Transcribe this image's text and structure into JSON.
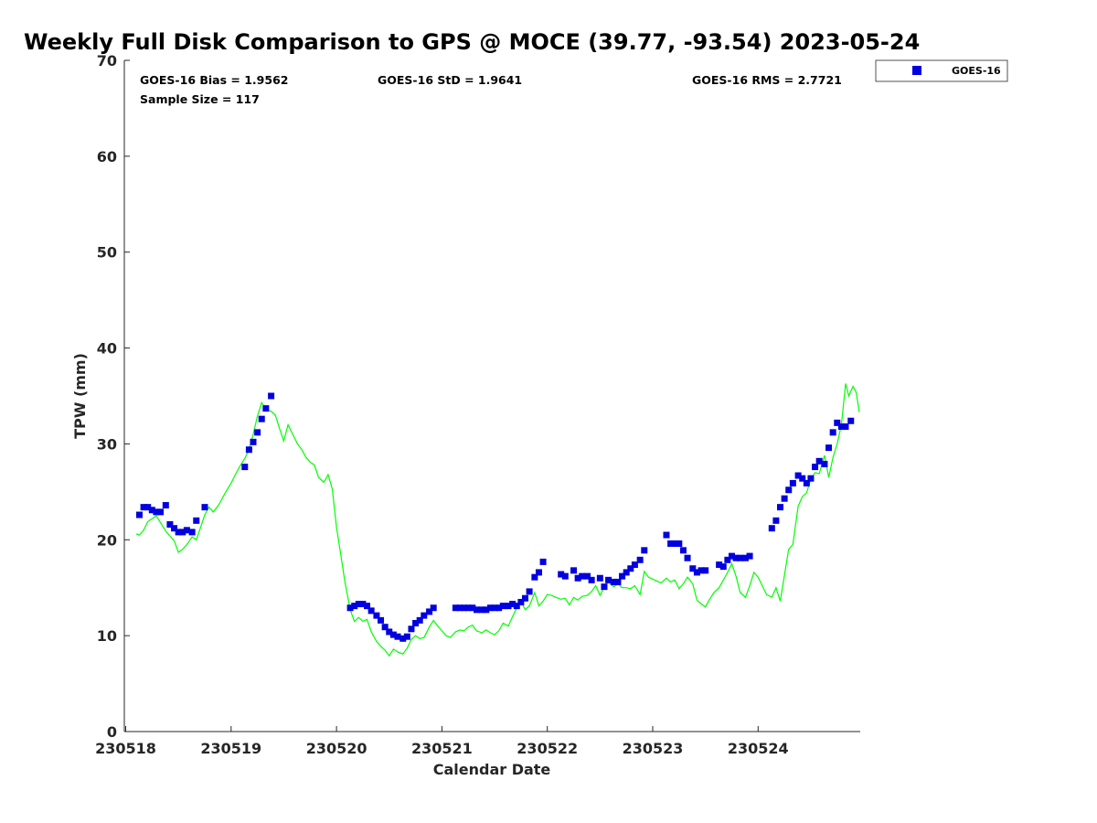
{
  "chart_data": {
    "type": "scatter",
    "title": "Weekly Full Disk Comparison to GPS @ MOCE (39.77, -93.54) 2023-05-24",
    "xlabel": "Calendar Date",
    "ylabel": "TPW (mm)",
    "xlim": [
      230518,
      230525
    ],
    "ylim": [
      0,
      70
    ],
    "x_ticks": [
      230518,
      230519,
      230520,
      230521,
      230522,
      230523,
      230524
    ],
    "x_tick_labels": [
      "230518",
      "230519",
      "230520",
      "230521",
      "230522",
      "230523",
      "230524"
    ],
    "y_ticks": [
      0,
      10,
      20,
      30,
      40,
      50,
      60,
      70
    ],
    "grid": false,
    "legend_position": "outside top-right",
    "stats": {
      "bias": "GOES-16 Bias = 1.9562",
      "std": "GOES-16 StD = 1.9641",
      "rms": "GOES-16 RMS = 2.7721",
      "sample_size": "Sample Size = 117"
    },
    "series": [
      {
        "name": "GOES-16",
        "marker": "square",
        "color": "#0000e0",
        "points": [
          [
            230518.13,
            22.6
          ],
          [
            230518.17,
            23.4
          ],
          [
            230518.21,
            23.4
          ],
          [
            230518.25,
            23.1
          ],
          [
            230518.29,
            22.9
          ],
          [
            230518.33,
            22.9
          ],
          [
            230518.38,
            23.6
          ],
          [
            230518.42,
            21.6
          ],
          [
            230518.46,
            21.2
          ],
          [
            230518.5,
            20.8
          ],
          [
            230518.54,
            20.8
          ],
          [
            230518.58,
            21.0
          ],
          [
            230518.63,
            20.8
          ],
          [
            230518.67,
            22.0
          ],
          [
            230518.75,
            23.4
          ],
          [
            230519.13,
            27.6
          ],
          [
            230519.17,
            29.4
          ],
          [
            230519.21,
            30.2
          ],
          [
            230519.25,
            31.2
          ],
          [
            230519.29,
            32.6
          ],
          [
            230519.33,
            33.7
          ],
          [
            230519.38,
            35.0
          ],
          [
            230520.13,
            12.9
          ],
          [
            230520.17,
            13.1
          ],
          [
            230520.21,
            13.3
          ],
          [
            230520.25,
            13.3
          ],
          [
            230520.29,
            13.1
          ],
          [
            230520.33,
            12.6
          ],
          [
            230520.38,
            12.1
          ],
          [
            230520.42,
            11.6
          ],
          [
            230520.46,
            10.9
          ],
          [
            230520.5,
            10.4
          ],
          [
            230520.54,
            10.1
          ],
          [
            230520.58,
            9.9
          ],
          [
            230520.63,
            9.7
          ],
          [
            230520.67,
            9.9
          ],
          [
            230520.71,
            10.7
          ],
          [
            230520.75,
            11.3
          ],
          [
            230520.79,
            11.6
          ],
          [
            230520.83,
            12.1
          ],
          [
            230520.88,
            12.5
          ],
          [
            230520.92,
            12.9
          ],
          [
            230521.13,
            12.9
          ],
          [
            230521.17,
            12.9
          ],
          [
            230521.21,
            12.9
          ],
          [
            230521.25,
            12.9
          ],
          [
            230521.29,
            12.9
          ],
          [
            230521.33,
            12.7
          ],
          [
            230521.38,
            12.7
          ],
          [
            230521.42,
            12.7
          ],
          [
            230521.46,
            12.9
          ],
          [
            230521.5,
            12.9
          ],
          [
            230521.54,
            12.9
          ],
          [
            230521.58,
            13.1
          ],
          [
            230521.63,
            13.1
          ],
          [
            230521.67,
            13.3
          ],
          [
            230521.71,
            13.1
          ],
          [
            230521.75,
            13.5
          ],
          [
            230521.79,
            13.9
          ],
          [
            230521.83,
            14.6
          ],
          [
            230521.88,
            16.1
          ],
          [
            230521.92,
            16.6
          ],
          [
            230521.96,
            17.7
          ],
          [
            230522.13,
            16.4
          ],
          [
            230522.17,
            16.2
          ],
          [
            230522.25,
            16.8
          ],
          [
            230522.29,
            16.0
          ],
          [
            230522.33,
            16.2
          ],
          [
            230522.38,
            16.2
          ],
          [
            230522.42,
            15.8
          ],
          [
            230522.5,
            16.0
          ],
          [
            230522.54,
            15.1
          ],
          [
            230522.58,
            15.8
          ],
          [
            230522.63,
            15.6
          ],
          [
            230522.67,
            15.6
          ],
          [
            230522.71,
            16.2
          ],
          [
            230522.75,
            16.6
          ],
          [
            230522.79,
            17.0
          ],
          [
            230522.83,
            17.4
          ],
          [
            230522.88,
            17.9
          ],
          [
            230522.92,
            18.9
          ],
          [
            230523.13,
            20.5
          ],
          [
            230523.17,
            19.6
          ],
          [
            230523.21,
            19.6
          ],
          [
            230523.25,
            19.6
          ],
          [
            230523.29,
            18.9
          ],
          [
            230523.33,
            18.1
          ],
          [
            230523.38,
            17.0
          ],
          [
            230523.42,
            16.6
          ],
          [
            230523.46,
            16.8
          ],
          [
            230523.5,
            16.8
          ],
          [
            230523.63,
            17.4
          ],
          [
            230523.67,
            17.2
          ],
          [
            230523.71,
            17.9
          ],
          [
            230523.75,
            18.3
          ],
          [
            230523.79,
            18.1
          ],
          [
            230523.83,
            18.1
          ],
          [
            230523.88,
            18.1
          ],
          [
            230523.92,
            18.3
          ],
          [
            230524.13,
            21.2
          ],
          [
            230524.17,
            22.0
          ],
          [
            230524.21,
            23.4
          ],
          [
            230524.25,
            24.3
          ],
          [
            230524.29,
            25.2
          ],
          [
            230524.33,
            25.9
          ],
          [
            230524.38,
            26.7
          ],
          [
            230524.42,
            26.4
          ],
          [
            230524.46,
            25.9
          ],
          [
            230524.5,
            26.4
          ],
          [
            230524.54,
            27.6
          ],
          [
            230524.58,
            28.2
          ],
          [
            230524.63,
            27.9
          ],
          [
            230524.67,
            29.6
          ],
          [
            230524.71,
            31.2
          ],
          [
            230524.75,
            32.2
          ],
          [
            230524.79,
            31.8
          ],
          [
            230524.83,
            31.8
          ],
          [
            230524.88,
            32.4
          ]
        ]
      },
      {
        "marker": "line",
        "color": "#00ff00",
        "points": [
          [
            230518.1,
            20.6
          ],
          [
            230518.13,
            20.5
          ],
          [
            230518.17,
            21.0
          ],
          [
            230518.21,
            21.9
          ],
          [
            230518.25,
            22.2
          ],
          [
            230518.29,
            22.5
          ],
          [
            230518.33,
            21.8
          ],
          [
            230518.38,
            20.9
          ],
          [
            230518.42,
            20.4
          ],
          [
            230518.46,
            19.9
          ],
          [
            230518.5,
            18.7
          ],
          [
            230518.54,
            19.0
          ],
          [
            230518.58,
            19.5
          ],
          [
            230518.63,
            20.3
          ],
          [
            230518.67,
            20.0
          ],
          [
            230518.71,
            21.3
          ],
          [
            230518.75,
            22.6
          ],
          [
            230518.79,
            23.4
          ],
          [
            230518.83,
            22.9
          ],
          [
            230518.88,
            23.6
          ],
          [
            230518.92,
            24.4
          ],
          [
            230518.96,
            25.2
          ],
          [
            230519.0,
            25.9
          ],
          [
            230519.04,
            26.8
          ],
          [
            230519.08,
            27.6
          ],
          [
            230519.13,
            28.5
          ],
          [
            230519.17,
            29.4
          ],
          [
            230519.21,
            31.0
          ],
          [
            230519.25,
            32.9
          ],
          [
            230519.29,
            34.3
          ],
          [
            230519.33,
            33.6
          ],
          [
            230519.38,
            33.4
          ],
          [
            230519.42,
            33.0
          ],
          [
            230519.46,
            31.6
          ],
          [
            230519.5,
            30.3
          ],
          [
            230519.54,
            32.0
          ],
          [
            230519.58,
            31.1
          ],
          [
            230519.63,
            30.0
          ],
          [
            230519.67,
            29.4
          ],
          [
            230519.71,
            28.6
          ],
          [
            230519.75,
            28.1
          ],
          [
            230519.79,
            27.8
          ],
          [
            230519.83,
            26.5
          ],
          [
            230519.88,
            26.0
          ],
          [
            230519.92,
            26.8
          ],
          [
            230519.96,
            25.3
          ],
          [
            230520.0,
            21.3
          ],
          [
            230520.04,
            18.5
          ],
          [
            230520.08,
            15.6
          ],
          [
            230520.13,
            12.7
          ],
          [
            230520.17,
            11.5
          ],
          [
            230520.21,
            11.9
          ],
          [
            230520.25,
            11.5
          ],
          [
            230520.29,
            11.7
          ],
          [
            230520.33,
            10.4
          ],
          [
            230520.38,
            9.4
          ],
          [
            230520.42,
            8.9
          ],
          [
            230520.46,
            8.5
          ],
          [
            230520.5,
            7.9
          ],
          [
            230520.54,
            8.6
          ],
          [
            230520.58,
            8.3
          ],
          [
            230520.63,
            8.1
          ],
          [
            230520.67,
            8.7
          ],
          [
            230520.71,
            9.6
          ],
          [
            230520.75,
            10.0
          ],
          [
            230520.79,
            9.7
          ],
          [
            230520.83,
            9.8
          ],
          [
            230520.88,
            10.9
          ],
          [
            230520.92,
            11.6
          ],
          [
            230520.96,
            11.0
          ],
          [
            230521.0,
            10.5
          ],
          [
            230521.04,
            10.0
          ],
          [
            230521.08,
            9.8
          ],
          [
            230521.13,
            10.4
          ],
          [
            230521.17,
            10.6
          ],
          [
            230521.21,
            10.5
          ],
          [
            230521.25,
            10.9
          ],
          [
            230521.29,
            11.1
          ],
          [
            230521.33,
            10.5
          ],
          [
            230521.38,
            10.3
          ],
          [
            230521.42,
            10.6
          ],
          [
            230521.46,
            10.3
          ],
          [
            230521.5,
            10.1
          ],
          [
            230521.54,
            10.5
          ],
          [
            230521.58,
            11.3
          ],
          [
            230521.63,
            11.0
          ],
          [
            230521.67,
            12.0
          ],
          [
            230521.71,
            12.9
          ],
          [
            230521.75,
            13.6
          ],
          [
            230521.79,
            12.7
          ],
          [
            230521.83,
            13.1
          ],
          [
            230521.88,
            14.5
          ],
          [
            230521.92,
            13.1
          ],
          [
            230521.96,
            13.6
          ],
          [
            230522.0,
            14.3
          ],
          [
            230522.04,
            14.2
          ],
          [
            230522.08,
            14.0
          ],
          [
            230522.13,
            13.8
          ],
          [
            230522.17,
            13.9
          ],
          [
            230522.21,
            13.2
          ],
          [
            230522.25,
            14.0
          ],
          [
            230522.29,
            13.7
          ],
          [
            230522.33,
            14.1
          ],
          [
            230522.38,
            14.2
          ],
          [
            230522.42,
            14.6
          ],
          [
            230522.46,
            15.2
          ],
          [
            230522.5,
            14.2
          ],
          [
            230522.54,
            15.1
          ],
          [
            230522.58,
            15.6
          ],
          [
            230522.63,
            15.1
          ],
          [
            230522.67,
            15.4
          ],
          [
            230522.71,
            15.0
          ],
          [
            230522.75,
            15.0
          ],
          [
            230522.79,
            14.9
          ],
          [
            230522.83,
            15.2
          ],
          [
            230522.88,
            14.3
          ],
          [
            230522.92,
            16.7
          ],
          [
            230522.96,
            16.1
          ],
          [
            230523.0,
            15.9
          ],
          [
            230523.04,
            15.7
          ],
          [
            230523.08,
            15.5
          ],
          [
            230523.13,
            16.0
          ],
          [
            230523.17,
            15.6
          ],
          [
            230523.21,
            15.8
          ],
          [
            230523.25,
            14.9
          ],
          [
            230523.29,
            15.4
          ],
          [
            230523.33,
            16.1
          ],
          [
            230523.38,
            15.4
          ],
          [
            230523.42,
            13.7
          ],
          [
            230523.46,
            13.3
          ],
          [
            230523.5,
            13.0
          ],
          [
            230523.54,
            13.8
          ],
          [
            230523.58,
            14.5
          ],
          [
            230523.63,
            15.0
          ],
          [
            230523.67,
            15.8
          ],
          [
            230523.71,
            16.6
          ],
          [
            230523.75,
            17.5
          ],
          [
            230523.79,
            16.2
          ],
          [
            230523.83,
            14.5
          ],
          [
            230523.88,
            14.0
          ],
          [
            230523.92,
            15.2
          ],
          [
            230523.96,
            16.6
          ],
          [
            230524.0,
            16.1
          ],
          [
            230524.04,
            15.2
          ],
          [
            230524.08,
            14.3
          ],
          [
            230524.13,
            14.0
          ],
          [
            230524.17,
            15.0
          ],
          [
            230524.21,
            13.6
          ],
          [
            230524.25,
            16.3
          ],
          [
            230524.29,
            19.0
          ],
          [
            230524.33,
            19.5
          ],
          [
            230524.38,
            23.5
          ],
          [
            230524.42,
            24.5
          ],
          [
            230524.46,
            24.9
          ],
          [
            230524.5,
            26.3
          ],
          [
            230524.54,
            27.0
          ],
          [
            230524.58,
            26.9
          ],
          [
            230524.63,
            28.8
          ],
          [
            230524.67,
            26.5
          ],
          [
            230524.71,
            28.6
          ],
          [
            230524.75,
            30.0
          ],
          [
            230524.79,
            32.0
          ],
          [
            230524.83,
            36.3
          ],
          [
            230524.86,
            35.0
          ],
          [
            230524.9,
            36.0
          ],
          [
            230524.93,
            35.4
          ],
          [
            230524.96,
            33.3
          ]
        ]
      }
    ]
  }
}
